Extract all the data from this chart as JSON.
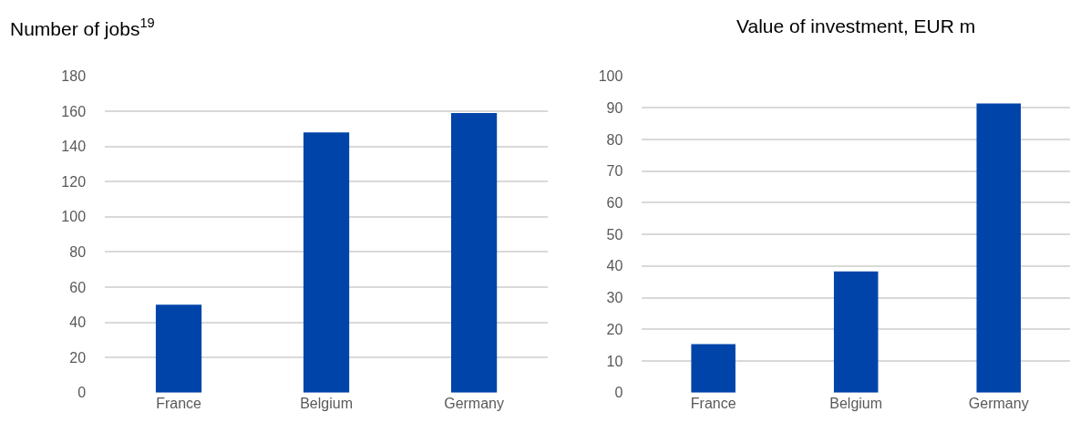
{
  "chart_data": [
    {
      "type": "bar",
      "title": "Number of jobs$^{19}$",
      "categories": [
        "France",
        "Belgium",
        "Germany"
      ],
      "values": [
        50,
        148,
        159
      ],
      "color": "#0044aa",
      "ylim": [
        0,
        180
      ],
      "yticks": [
        0,
        20,
        40,
        60,
        80,
        100,
        120,
        140,
        160,
        180
      ],
      "grid": "y"
    },
    {
      "type": "bar",
      "title": "Value of investment, EUR m",
      "categories": [
        "France",
        "Belgium",
        "Germany"
      ],
      "values": [
        15.3,
        38.3,
        91.4
      ],
      "color": "#0044aa",
      "ylim": [
        0,
        100
      ],
      "yticks": [
        0,
        10,
        20,
        30,
        40,
        50,
        60,
        70,
        80,
        90,
        100
      ],
      "grid": "y"
    }
  ]
}
